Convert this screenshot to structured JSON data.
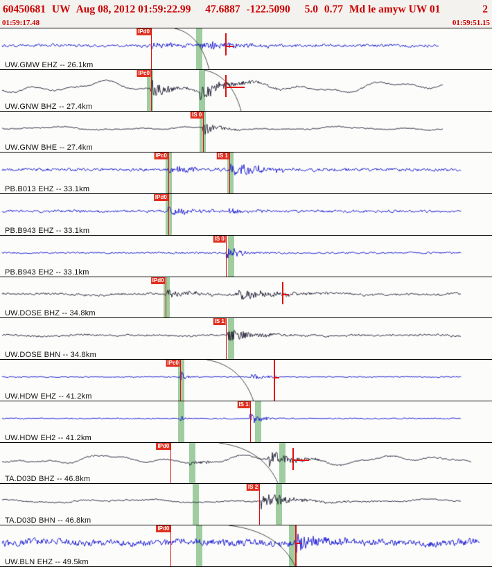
{
  "header": {
    "event_id": "60450681",
    "network": "UW",
    "origin_time": "Aug 08, 2012 01:59:22.99",
    "lat": "47.6887",
    "lon": "-122.5090",
    "depth_km": "5.0",
    "magnitude": "0.77",
    "summary_tail": "Md le amyw UW 01",
    "page": "2"
  },
  "timebar": {
    "start": "01:59:17.48",
    "end": "01:59:51.15"
  },
  "colors": {
    "header_red": "#cc0000",
    "trace_blue": "#0f0fd0",
    "trace_dark": "#16162e",
    "pick_red": "#e01010",
    "pick_label_bg": "#e03020",
    "band_green": "rgba(130,190,130,0.75)"
  },
  "traces": [
    {
      "label": "UW.GMW EHZ -- 26.1km",
      "channel_color": "blue",
      "picks": [
        {
          "label": "IPd0",
          "x": 0.307
        }
      ],
      "bands": [
        {
          "x": 0.399
        }
      ],
      "flags": [
        {
          "x": 0.458,
          "bar": 12
        }
      ],
      "arc": {
        "x": 0.355,
        "span": 0.07
      },
      "viz": {
        "seed": 11,
        "start": 0.004,
        "end": 0.892,
        "noise": 2.6,
        "lf": 0.8,
        "bursts": [
          {
            "x": 0.307,
            "amp": 5,
            "len": 0.05
          },
          {
            "x": 0.405,
            "amp": 6.5,
            "len": 0.09
          }
        ]
      }
    },
    {
      "label": "UW.GNW BHZ -- 27.4km",
      "channel_color": "dark",
      "picks": [
        {
          "label": "IPc0",
          "x": 0.307
        }
      ],
      "bands": [
        {
          "x": 0.299
        },
        {
          "x": 0.404
        }
      ],
      "flags": [
        {
          "x": 0.458,
          "bar": 28
        }
      ],
      "arc": {
        "x": 0.415,
        "span": 0.075
      },
      "viz": {
        "seed": 22,
        "start": 0.004,
        "end": 0.9,
        "noise": 1.4,
        "lf": 8,
        "bursts": [
          {
            "x": 0.307,
            "amp": 15,
            "len": 0.03
          },
          {
            "x": 0.405,
            "amp": 12,
            "len": 0.06
          }
        ]
      }
    },
    {
      "label": "UW.GNW BHE -- 27.4km",
      "channel_color": "dark",
      "picks": [
        {
          "label": "IS 0",
          "x": 0.413
        }
      ],
      "bands": [
        {
          "x": 0.406
        }
      ],
      "flags": [],
      "viz": {
        "seed": 33,
        "start": 0.004,
        "end": 0.9,
        "noise": 1.1,
        "lf": 2.5,
        "bursts": [
          {
            "x": 0.411,
            "amp": 14,
            "len": 0.025
          }
        ]
      }
    },
    {
      "label": "PB.B013 EHZ -- 33.1km",
      "channel_color": "blue",
      "picks": [
        {
          "label": "IPc0",
          "x": 0.342
        },
        {
          "label": "IS 1",
          "x": 0.466
        }
      ],
      "bands": [
        {
          "x": 0.336
        },
        {
          "x": 0.462
        }
      ],
      "flags": [],
      "viz": {
        "seed": 44,
        "start": 0.004,
        "end": 0.936,
        "noise": 2.8,
        "lf": 0,
        "bursts": [
          {
            "x": 0.342,
            "amp": 6,
            "len": 0.05
          },
          {
            "x": 0.466,
            "amp": 11,
            "len": 0.07
          }
        ]
      }
    },
    {
      "label": "PB.B943 EHZ -- 33.1km",
      "channel_color": "blue",
      "picks": [
        {
          "label": "IPd0",
          "x": 0.342
        }
      ],
      "bands": [
        {
          "x": 0.336
        }
      ],
      "flags": [],
      "viz": {
        "seed": 55,
        "start": 0.004,
        "end": 0.936,
        "noise": 2.4,
        "lf": 0,
        "bursts": [
          {
            "x": 0.342,
            "amp": 7,
            "len": 0.05
          },
          {
            "x": 0.466,
            "amp": 4.5,
            "len": 0.05
          }
        ]
      }
    },
    {
      "label": "PB.B943 EH2 -- 33.1km",
      "channel_color": "blue",
      "picks": [
        {
          "label": "IS 0",
          "x": 0.459
        }
      ],
      "bands": [
        {
          "x": 0.463
        }
      ],
      "flags": [],
      "viz": {
        "seed": 66,
        "start": 0.004,
        "end": 0.936,
        "noise": 1.7,
        "lf": 0,
        "bursts": [
          {
            "x": 0.459,
            "amp": 12,
            "len": 0.03
          }
        ]
      }
    },
    {
      "label": "UW.DOSE BHZ -- 34.8km",
      "channel_color": "dark",
      "picks": [
        {
          "label": "IPd0",
          "x": 0.336
        }
      ],
      "bands": [
        {
          "x": 0.332
        }
      ],
      "flags": [
        {
          "x": 0.573,
          "bar": 10
        }
      ],
      "viz": {
        "seed": 77,
        "start": 0.004,
        "end": 0.936,
        "noise": 2.1,
        "lf": 1.6,
        "bursts": [
          {
            "x": 0.336,
            "amp": 6.5,
            "len": 0.06
          },
          {
            "x": 0.478,
            "amp": 9,
            "len": 0.08
          }
        ]
      }
    },
    {
      "label": "UW.DOSE BHN -- 34.8km",
      "channel_color": "dark",
      "picks": [
        {
          "label": "IS 1",
          "x": 0.459
        }
      ],
      "bands": [
        {
          "x": 0.463
        }
      ],
      "flags": [],
      "viz": {
        "seed": 88,
        "start": 0.004,
        "end": 0.936,
        "noise": 1.9,
        "lf": 1.2,
        "bursts": [
          {
            "x": 0.462,
            "amp": 9.5,
            "len": 0.06
          }
        ]
      }
    },
    {
      "label": "UW.HDW EHZ -- 41.2km",
      "channel_color": "blue",
      "picks": [
        {
          "label": "IPc0",
          "x": 0.366
        }
      ],
      "bands": [
        {
          "x": 0.362
        }
      ],
      "flags": [
        {
          "x": 0.556,
          "bar": 8,
          "full": true
        }
      ],
      "arc": {
        "x": 0.42,
        "span": 0.095
      },
      "viz": {
        "seed": 99,
        "start": 0.004,
        "end": 0.936,
        "noise": 1.1,
        "lf": 0,
        "bursts": [
          {
            "x": 0.366,
            "amp": 10,
            "len": 0.012
          },
          {
            "x": 0.51,
            "amp": 4,
            "len": 0.04
          }
        ]
      }
    },
    {
      "label": "UW.HDW EH2 -- 41.2km",
      "channel_color": "blue",
      "picks": [
        {
          "label": "IS 1",
          "x": 0.508
        }
      ],
      "bands": [
        {
          "x": 0.362
        },
        {
          "x": 0.519
        }
      ],
      "flags": [],
      "viz": {
        "seed": 110,
        "start": 0.004,
        "end": 0.936,
        "noise": 1.1,
        "lf": 0,
        "bursts": [
          {
            "x": 0.366,
            "amp": 5,
            "len": 0.01
          },
          {
            "x": 0.508,
            "amp": 11,
            "len": 0.02
          }
        ]
      }
    },
    {
      "label": "TA.D03D BHZ -- 46.8km",
      "channel_color": "dark",
      "picks": [
        {
          "label": "IPd0",
          "x": 0.347
        }
      ],
      "bands": [
        {
          "x": 0.385
        },
        {
          "x": 0.567
        }
      ],
      "flags": [
        {
          "x": 0.594,
          "bar": 24
        }
      ],
      "arc": {
        "x": 0.445,
        "span": 0.12
      },
      "viz": {
        "seed": 121,
        "start": 0.004,
        "end": 0.958,
        "noise": 1.4,
        "lf": 6.5,
        "bursts": [
          {
            "x": 0.385,
            "amp": 4,
            "len": 0.04
          },
          {
            "x": 0.545,
            "amp": 13,
            "len": 0.05
          }
        ]
      }
    },
    {
      "label": "TA.D03D BHN -- 46.8km",
      "channel_color": "dark",
      "picks": [
        {
          "label": "IS 2",
          "x": 0.527
        }
      ],
      "bands": [
        {
          "x": 0.392
        },
        {
          "x": 0.56
        }
      ],
      "flags": [],
      "viz": {
        "seed": 132,
        "start": 0.004,
        "end": 0.936,
        "noise": 1.4,
        "lf": 2.5,
        "bursts": [
          {
            "x": 0.53,
            "amp": 12,
            "len": 0.055
          }
        ]
      }
    },
    {
      "label": "UW.BLN EHZ -- 49.5km",
      "channel_color": "blue",
      "picks": [
        {
          "label": "IPd0",
          "x": 0.347
        }
      ],
      "bands": [
        {
          "x": 0.399
        },
        {
          "x": 0.588
        }
      ],
      "flags": [
        {
          "x": 0.6,
          "bar": 8,
          "full": true
        }
      ],
      "arc": {
        "x": 0.465,
        "span": 0.135
      },
      "viz": {
        "seed": 143,
        "start": 0.004,
        "end": 0.975,
        "noise": 6.5,
        "lf": 2,
        "bursts": [
          {
            "x": 0.6,
            "amp": 13,
            "len": 0.05
          }
        ]
      }
    }
  ]
}
